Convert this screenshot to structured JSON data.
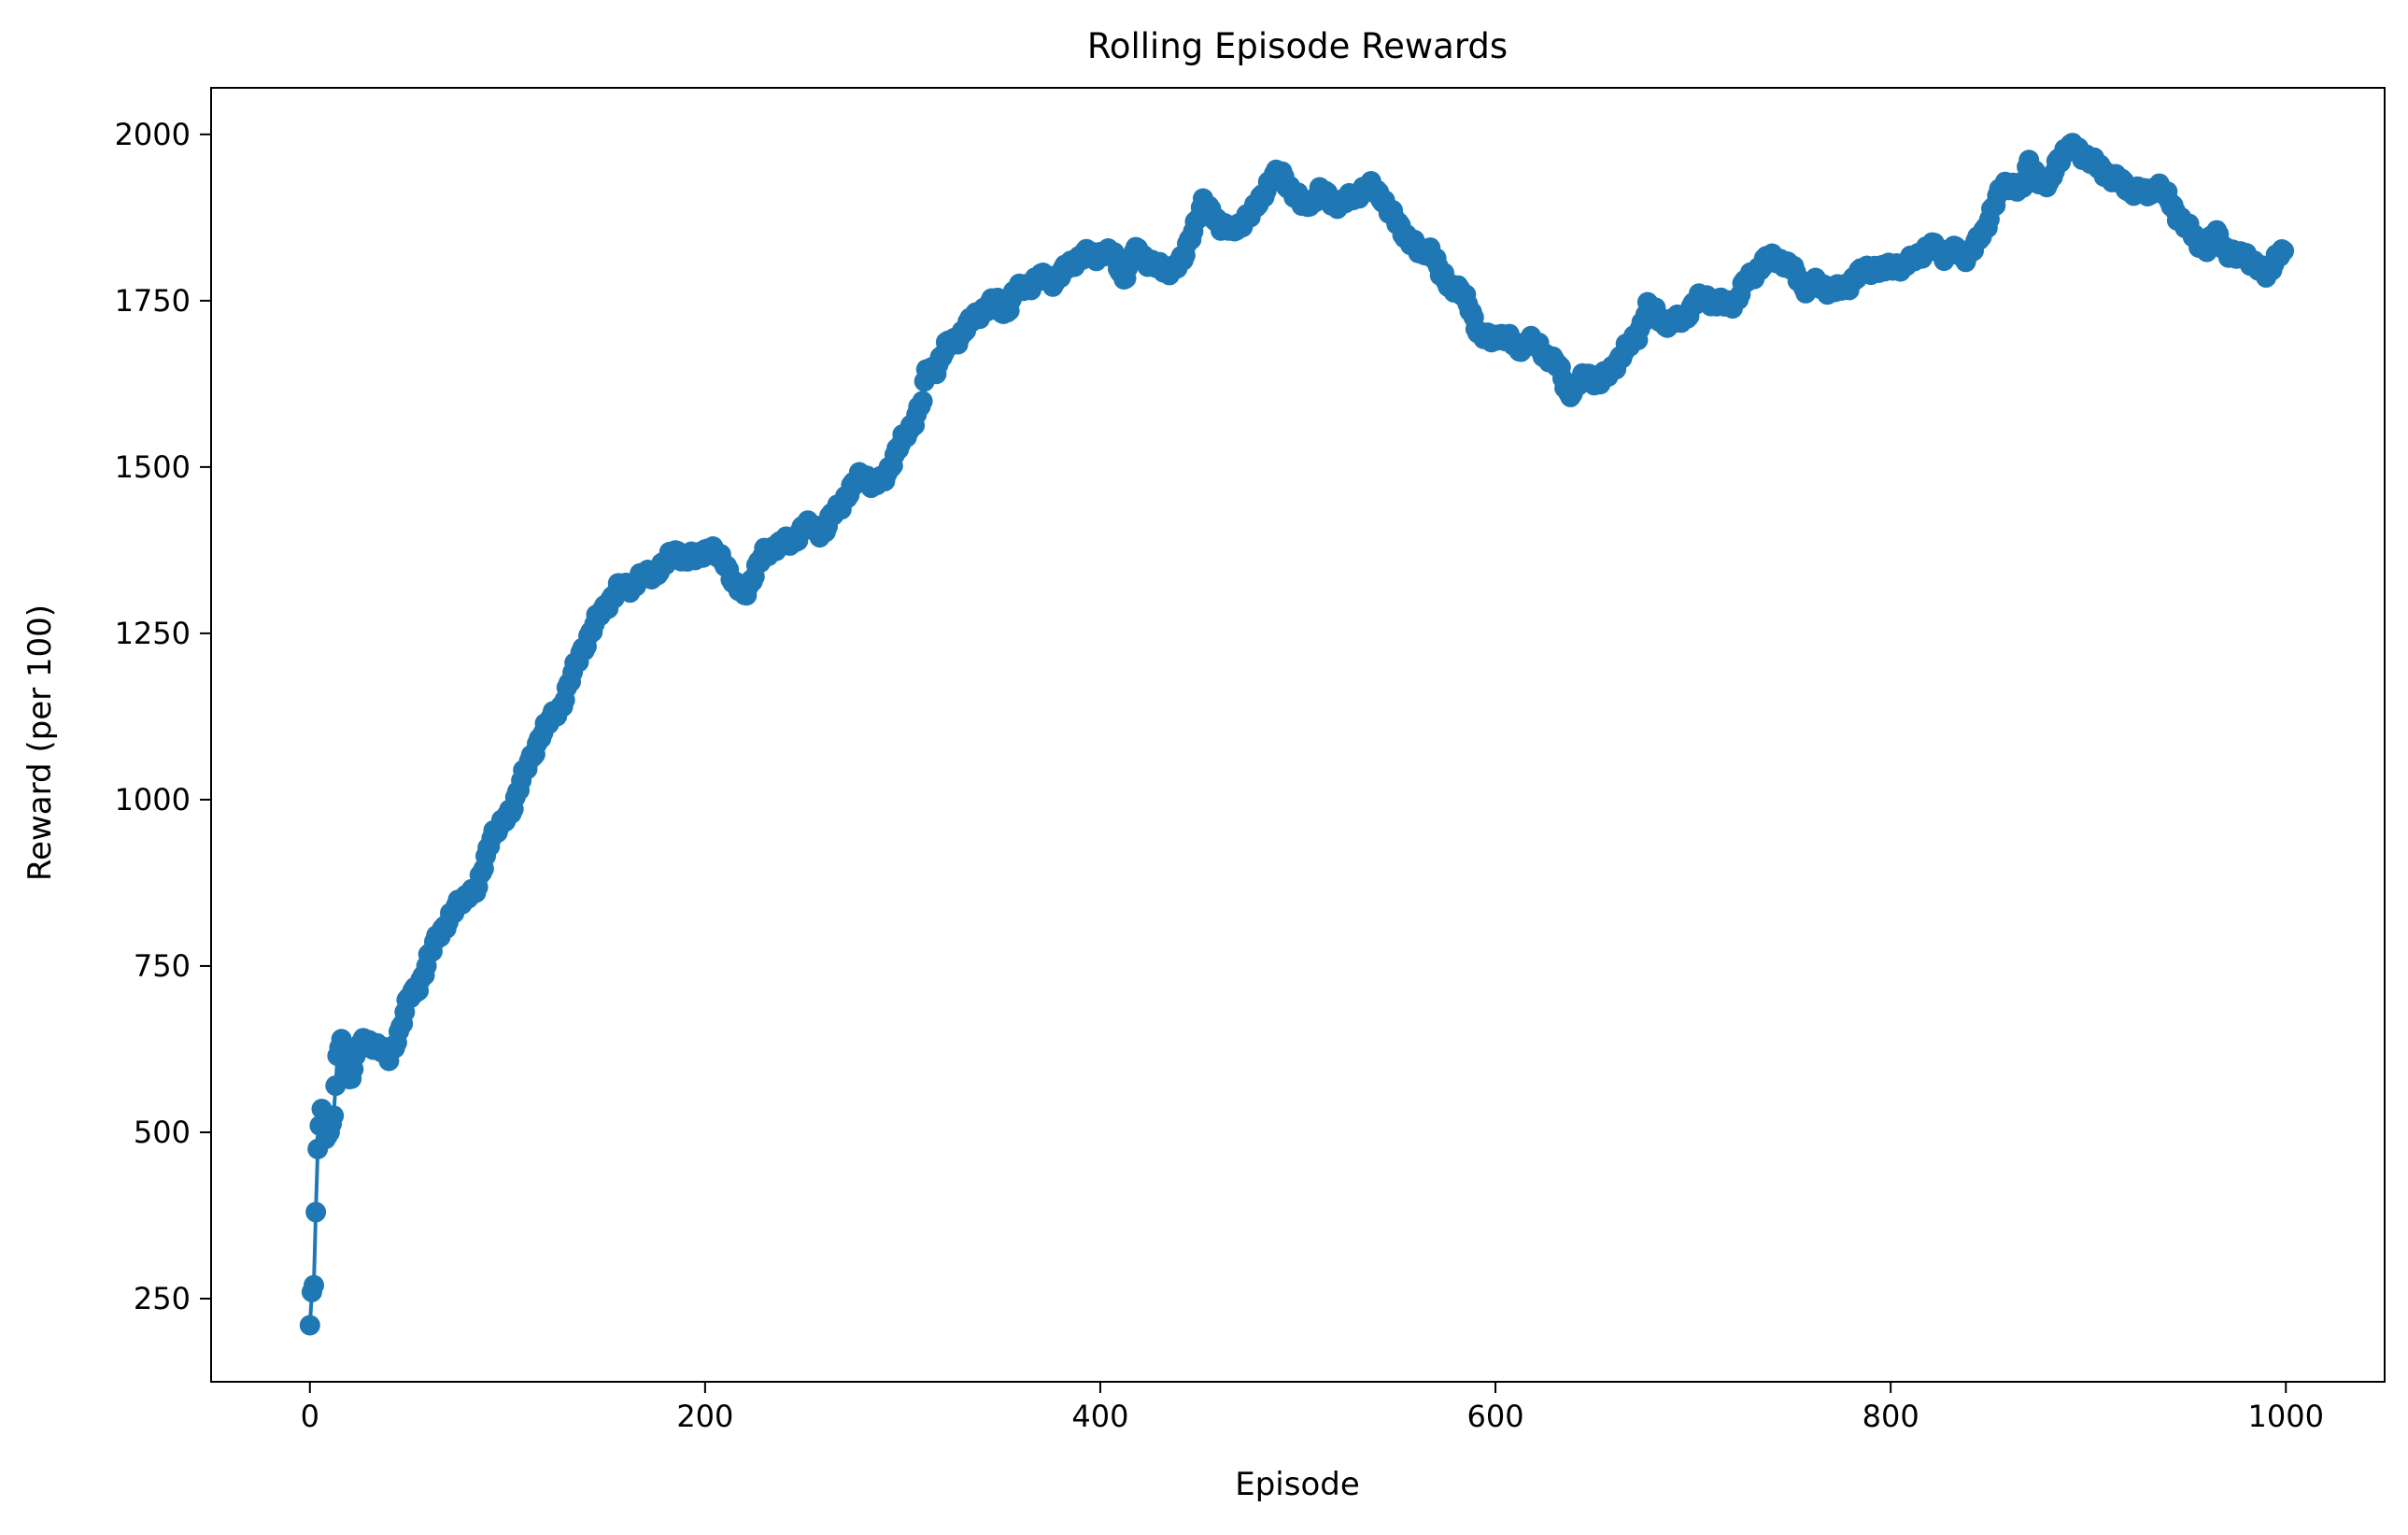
{
  "colors": {
    "series": "#1f77b4",
    "axes": "#000000",
    "background": "#ffffff"
  },
  "chart_data": {
    "type": "line",
    "marker": "circle",
    "title": "Rolling Episode Rewards",
    "xlabel": "Episode",
    "ylabel": "Reward (per 100)",
    "xlim": [
      -50,
      1050
    ],
    "ylim": [
      125,
      2070
    ],
    "grid": false,
    "legend": "none",
    "xticks": [
      0,
      200,
      400,
      600,
      800,
      1000
    ],
    "xtick_labels": [
      "0",
      "200",
      "400",
      "600",
      "800",
      "1000"
    ],
    "yticks": [
      250,
      500,
      750,
      1000,
      1250,
      1500,
      1750,
      2000
    ],
    "ytick_labels": [
      "250",
      "500",
      "750",
      "1000",
      "1250",
      "1500",
      "1750",
      "2000"
    ],
    "anchors": [
      [
        0,
        210
      ],
      [
        1,
        260
      ],
      [
        2,
        270
      ],
      [
        3,
        380
      ],
      [
        4,
        475
      ],
      [
        5,
        510
      ],
      [
        6,
        535
      ],
      [
        8,
        490
      ],
      [
        10,
        500
      ],
      [
        12,
        525
      ],
      [
        14,
        615
      ],
      [
        16,
        640
      ],
      [
        18,
        600
      ],
      [
        20,
        580
      ],
      [
        25,
        630
      ],
      [
        30,
        635
      ],
      [
        35,
        630
      ],
      [
        40,
        610
      ],
      [
        45,
        650
      ],
      [
        50,
        700
      ],
      [
        55,
        720
      ],
      [
        60,
        760
      ],
      [
        65,
        795
      ],
      [
        70,
        820
      ],
      [
        75,
        840
      ],
      [
        80,
        860
      ],
      [
        85,
        865
      ],
      [
        88,
        900
      ],
      [
        92,
        950
      ],
      [
        97,
        960
      ],
      [
        102,
        985
      ],
      [
        107,
        1030
      ],
      [
        112,
        1060
      ],
      [
        117,
        1100
      ],
      [
        122,
        1120
      ],
      [
        127,
        1140
      ],
      [
        132,
        1180
      ],
      [
        137,
        1220
      ],
      [
        142,
        1250
      ],
      [
        147,
        1280
      ],
      [
        152,
        1300
      ],
      [
        157,
        1320
      ],
      [
        162,
        1320
      ],
      [
        168,
        1335
      ],
      [
        174,
        1340
      ],
      [
        180,
        1355
      ],
      [
        185,
        1375
      ],
      [
        190,
        1360
      ],
      [
        195,
        1365
      ],
      [
        200,
        1375
      ],
      [
        205,
        1370
      ],
      [
        210,
        1360
      ],
      [
        215,
        1320
      ],
      [
        220,
        1310
      ],
      [
        225,
        1340
      ],
      [
        230,
        1370
      ],
      [
        235,
        1380
      ],
      [
        240,
        1385
      ],
      [
        245,
        1390
      ],
      [
        250,
        1410
      ],
      [
        255,
        1410
      ],
      [
        260,
        1400
      ],
      [
        265,
        1430
      ],
      [
        270,
        1450
      ],
      [
        275,
        1470
      ],
      [
        280,
        1495
      ],
      [
        285,
        1470
      ],
      [
        290,
        1480
      ],
      [
        295,
        1510
      ],
      [
        300,
        1540
      ],
      [
        305,
        1565
      ],
      [
        310,
        1600
      ],
      [
        312,
        1640
      ],
      [
        317,
        1650
      ],
      [
        322,
        1680
      ],
      [
        327,
        1690
      ],
      [
        332,
        1710
      ],
      [
        337,
        1725
      ],
      [
        342,
        1740
      ],
      [
        347,
        1750
      ],
      [
        352,
        1730
      ],
      [
        357,
        1765
      ],
      [
        362,
        1770
      ],
      [
        367,
        1780
      ],
      [
        372,
        1785
      ],
      [
        377,
        1780
      ],
      [
        382,
        1795
      ],
      [
        387,
        1810
      ],
      [
        392,
        1820
      ],
      [
        397,
        1815
      ],
      [
        402,
        1825
      ],
      [
        407,
        1815
      ],
      [
        412,
        1785
      ],
      [
        417,
        1825
      ],
      [
        422,
        1815
      ],
      [
        427,
        1805
      ],
      [
        432,
        1795
      ],
      [
        437,
        1800
      ],
      [
        442,
        1810
      ],
      [
        447,
        1860
      ],
      [
        452,
        1895
      ],
      [
        457,
        1880
      ],
      [
        462,
        1860
      ],
      [
        467,
        1855
      ],
      [
        472,
        1870
      ],
      [
        477,
        1880
      ],
      [
        482,
        1910
      ],
      [
        487,
        1935
      ],
      [
        492,
        1940
      ],
      [
        497,
        1915
      ],
      [
        502,
        1895
      ],
      [
        507,
        1900
      ],
      [
        512,
        1915
      ],
      [
        517,
        1900
      ],
      [
        522,
        1895
      ],
      [
        527,
        1905
      ],
      [
        532,
        1915
      ],
      [
        537,
        1920
      ],
      [
        542,
        1910
      ],
      [
        547,
        1880
      ],
      [
        552,
        1860
      ],
      [
        557,
        1840
      ],
      [
        562,
        1820
      ],
      [
        567,
        1830
      ],
      [
        572,
        1790
      ],
      [
        577,
        1775
      ],
      [
        582,
        1765
      ],
      [
        587,
        1740
      ],
      [
        592,
        1700
      ],
      [
        597,
        1690
      ],
      [
        602,
        1700
      ],
      [
        607,
        1690
      ],
      [
        612,
        1680
      ],
      [
        617,
        1690
      ],
      [
        622,
        1680
      ],
      [
        627,
        1665
      ],
      [
        632,
        1650
      ],
      [
        637,
        1610
      ],
      [
        642,
        1625
      ],
      [
        647,
        1640
      ],
      [
        652,
        1625
      ],
      [
        657,
        1640
      ],
      [
        662,
        1660
      ],
      [
        667,
        1680
      ],
      [
        672,
        1700
      ],
      [
        677,
        1740
      ],
      [
        682,
        1730
      ],
      [
        687,
        1715
      ],
      [
        692,
        1720
      ],
      [
        697,
        1730
      ],
      [
        702,
        1750
      ],
      [
        707,
        1755
      ],
      [
        712,
        1745
      ],
      [
        717,
        1745
      ],
      [
        722,
        1750
      ],
      [
        727,
        1780
      ],
      [
        732,
        1795
      ],
      [
        737,
        1810
      ],
      [
        742,
        1815
      ],
      [
        747,
        1805
      ],
      [
        752,
        1790
      ],
      [
        757,
        1770
      ],
      [
        762,
        1775
      ],
      [
        767,
        1770
      ],
      [
        772,
        1765
      ],
      [
        777,
        1770
      ],
      [
        782,
        1785
      ],
      [
        787,
        1795
      ],
      [
        792,
        1800
      ],
      [
        797,
        1795
      ],
      [
        802,
        1805
      ],
      [
        807,
        1800
      ],
      [
        812,
        1815
      ],
      [
        817,
        1825
      ],
      [
        822,
        1830
      ],
      [
        827,
        1820
      ],
      [
        832,
        1825
      ],
      [
        837,
        1815
      ],
      [
        842,
        1830
      ],
      [
        847,
        1850
      ],
      [
        852,
        1895
      ],
      [
        857,
        1920
      ],
      [
        862,
        1925
      ],
      [
        867,
        1920
      ],
      [
        870,
        1955
      ],
      [
        875,
        1935
      ],
      [
        880,
        1920
      ],
      [
        885,
        1965
      ],
      [
        890,
        1980
      ],
      [
        895,
        1975
      ],
      [
        900,
        1965
      ],
      [
        905,
        1950
      ],
      [
        910,
        1940
      ],
      [
        915,
        1930
      ],
      [
        920,
        1920
      ],
      [
        925,
        1915
      ],
      [
        930,
        1910
      ],
      [
        935,
        1925
      ],
      [
        940,
        1905
      ],
      [
        945,
        1880
      ],
      [
        950,
        1860
      ],
      [
        955,
        1840
      ],
      [
        960,
        1830
      ],
      [
        965,
        1850
      ],
      [
        970,
        1825
      ],
      [
        975,
        1815
      ],
      [
        980,
        1820
      ],
      [
        985,
        1800
      ],
      [
        990,
        1790
      ],
      [
        995,
        1815
      ],
      [
        999,
        1825
      ]
    ]
  }
}
